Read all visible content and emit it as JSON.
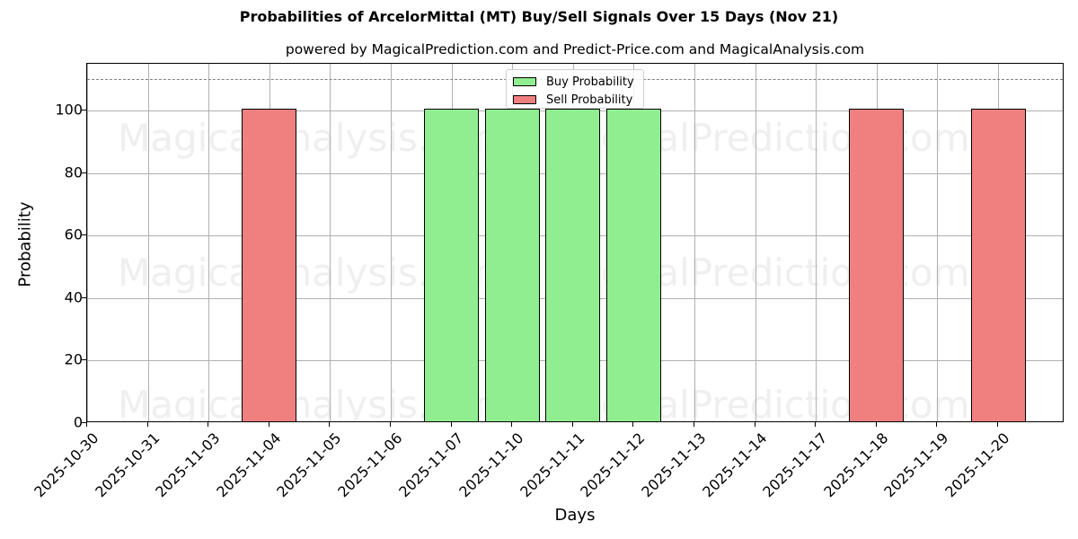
{
  "title": "Probabilities of ArcelorMittal (MT) Buy/Sell Signals Over 15 Days (Nov 21)",
  "subtitle": "powered by MagicalPrediction.com and Predict-Price.com and MagicalAnalysis.com",
  "watermarks": [
    "MagicalAnalysis.com",
    "MagicalPrediction.com"
  ],
  "colors": {
    "buy": "#90ee90",
    "sell": "#f08080",
    "grid": "#b0b0b0",
    "reference_line": "#808080"
  },
  "legend": {
    "buy_label": "Buy Probability",
    "sell_label": "Sell Probability"
  },
  "chart_data": {
    "type": "bar",
    "title": "Probabilities of ArcelorMittal (MT) Buy/Sell Signals Over 15 Days (Nov 21)",
    "subtitle": "powered by MagicalPrediction.com and Predict-Price.com and MagicalAnalysis.com",
    "xlabel": "Days",
    "ylabel": "Probability",
    "ylim": [
      0,
      115
    ],
    "yticks": [
      0,
      20,
      40,
      60,
      80,
      100
    ],
    "grid": true,
    "legend_position": "upper center",
    "reference_line": {
      "y": 110,
      "style": "dashed",
      "color": "#808080"
    },
    "categories": [
      "2025-10-30",
      "2025-10-31",
      "2025-11-03",
      "2025-11-04",
      "2025-11-05",
      "2025-11-06",
      "2025-11-07",
      "2025-11-10",
      "2025-11-11",
      "2025-11-12",
      "2025-11-13",
      "2025-11-14",
      "2025-11-17",
      "2025-11-18",
      "2025-11-19",
      "2025-11-20"
    ],
    "series": [
      {
        "name": "Buy Probability",
        "color": "#90ee90",
        "values": [
          0,
          0,
          0,
          0,
          0,
          0,
          100,
          100,
          100,
          100,
          0,
          0,
          0,
          0,
          0,
          0
        ]
      },
      {
        "name": "Sell Probability",
        "color": "#f08080",
        "values": [
          0,
          0,
          0,
          100,
          0,
          0,
          0,
          0,
          0,
          0,
          0,
          0,
          0,
          100,
          0,
          100
        ]
      }
    ]
  }
}
